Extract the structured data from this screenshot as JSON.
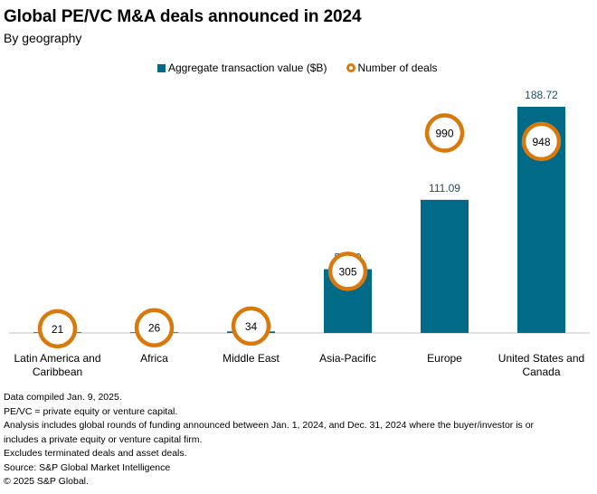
{
  "header": {
    "title": "Global PE/VC M&A deals announced in 2024",
    "subtitle": "By geography"
  },
  "colors": {
    "bar": "#006a87",
    "circle": "#d9790b",
    "value_label": "#1f4f63",
    "axis": "#bfbfbf"
  },
  "chart_data": {
    "type": "bar",
    "title": "Global PE/VC M&A deals announced in 2024",
    "subtitle": "By geography",
    "xlabel": "",
    "ylabel": "",
    "grid": false,
    "legend_position": "top-center",
    "categories": [
      "Latin America and Caribbean",
      "Africa",
      "Middle East",
      "Asia-Pacific",
      "Europe",
      "United States and Canada"
    ],
    "category_lines": [
      [
        "Latin America and",
        "Caribbean"
      ],
      [
        "Africa"
      ],
      [
        "Middle East"
      ],
      [
        "Asia-Pacific"
      ],
      [
        "Europe"
      ],
      [
        "United States and",
        "Canada"
      ]
    ],
    "series": [
      {
        "name": "Aggregate transaction value ($B)",
        "type": "bar",
        "axis": "primary",
        "values": [
          0.31,
          0.53,
          1.29,
          53.2,
          111.09,
          188.72
        ],
        "labels": [
          "0.31",
          "0.53",
          "1.29",
          "53.20",
          "111.09",
          "188.72"
        ]
      },
      {
        "name": "Number of deals",
        "type": "scatter",
        "marker": "circle",
        "axis": "secondary",
        "values": [
          21,
          26,
          34,
          305,
          990,
          948
        ],
        "labels": [
          "21",
          "26",
          "34",
          "305",
          "990",
          "948"
        ]
      }
    ],
    "ylim": [
      0,
      188.72
    ],
    "y2lim": [
      0,
      1120
    ]
  },
  "notes": [
    "Data compiled Jan. 9, 2025.",
    "PE/VC = private equity or venture capital.",
    "Analysis includes global rounds of funding announced between Jan. 1, 2024, and Dec. 31, 2024 where the buyer/investor is or includes a private equity or venture capital firm.",
    "Excludes terminated deals and asset deals.",
    "Source: S&P Global Market Intelligence",
    "© 2025 S&P Global."
  ]
}
